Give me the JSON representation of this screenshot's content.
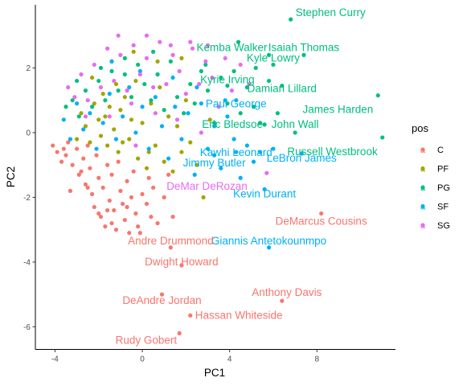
{
  "chart_data": {
    "type": "scatter",
    "xlabel": "PC1",
    "ylabel": "PC2",
    "xlim": [
      -4.9,
      11.6
    ],
    "ylim": [
      -6.7,
      3.95
    ],
    "xticks": [
      -4,
      0,
      4,
      8
    ],
    "yticks": [
      -6,
      -4,
      -2,
      0,
      2
    ],
    "grid": false,
    "legend": {
      "title": "pos",
      "placement": "right",
      "entries": [
        "C",
        "PF",
        "PG",
        "SF",
        "SG"
      ],
      "key_glyph": "a"
    },
    "colors": {
      "C": "#F8766D",
      "PF": "#A3A500",
      "PG": "#00BF7D",
      "SF": "#00B0F6",
      "SG": "#E76BF3"
    },
    "labeled_players": [
      {
        "name": "Stephen Curry",
        "pos": "PG",
        "x": 6.8,
        "y": 3.5
      },
      {
        "name": "Kemba Walker",
        "pos": "PG",
        "x": 5.8,
        "y": 2.4
      },
      {
        "name": "Isaiah Thomas",
        "pos": "PG",
        "x": 7.4,
        "y": 2.4
      },
      {
        "name": "Kyle Lowry",
        "pos": "PG",
        "x": 6.0,
        "y": 2.1
      },
      {
        "name": "Kyrie Irving",
        "pos": "PG",
        "x": 3.9,
        "y": 1.45
      },
      {
        "name": "Damian Lillard",
        "pos": "PG",
        "x": 6.4,
        "y": 1.45
      },
      {
        "name": "Paul George",
        "pos": "SF",
        "x": 4.3,
        "y": 1.0
      },
      {
        "name": "James Harden",
        "pos": "PG",
        "x": 10.8,
        "y": 1.15
      },
      {
        "name": "Eric Bledsoe",
        "pos": "PG",
        "x": 5.6,
        "y": 0.25
      },
      {
        "name": "John Wall",
        "pos": "PG",
        "x": 7.0,
        "y": 0.0
      },
      {
        "name": "Kawhi Leonard",
        "pos": "SF",
        "x": 4.3,
        "y": -0.6
      },
      {
        "name": "Russell Westbrook",
        "pos": "PG",
        "x": 11.0,
        "y": -0.15
      },
      {
        "name": "Jimmy Butler",
        "pos": "SF",
        "x": 3.3,
        "y": -0.7
      },
      {
        "name": "LeBron James",
        "pos": "SF",
        "x": 7.3,
        "y": -0.65
      },
      {
        "name": "DeMar DeRozan",
        "pos": "SG",
        "x": 5.7,
        "y": -1.25
      },
      {
        "name": "Kevin Durant",
        "pos": "SF",
        "x": 5.6,
        "y": -1.75
      },
      {
        "name": "DeMarcus Cousins",
        "pos": "C",
        "x": 8.2,
        "y": -2.5
      },
      {
        "name": "Giannis Antetokounmpo",
        "pos": "SF",
        "x": 5.8,
        "y": -3.55
      },
      {
        "name": "Andre Drummond",
        "pos": "C",
        "x": 1.3,
        "y": -3.55
      },
      {
        "name": "Dwight Howard",
        "pos": "C",
        "x": 1.8,
        "y": -4.1
      },
      {
        "name": "Anthony Davis",
        "pos": "C",
        "x": 6.4,
        "y": -5.2
      },
      {
        "name": "DeAndre Jordan",
        "pos": "C",
        "x": 0.9,
        "y": -5.0
      },
      {
        "name": "Hassan Whiteside",
        "pos": "C",
        "x": 2.2,
        "y": -5.65
      },
      {
        "name": "Rudy Gobert",
        "pos": "C",
        "x": 1.7,
        "y": -6.2
      }
    ],
    "other_players": {
      "C": [
        [
          -4.1,
          -0.4
        ],
        [
          -3.9,
          -0.6
        ],
        [
          -3.7,
          -0.9
        ],
        [
          -3.5,
          -0.7
        ],
        [
          -3.4,
          -0.3
        ],
        [
          -3.2,
          -1.0
        ],
        [
          -3.0,
          -0.5
        ],
        [
          -2.9,
          -1.3
        ],
        [
          -2.7,
          -0.8
        ],
        [
          -2.6,
          -1.6
        ],
        [
          -2.5,
          -0.4
        ],
        [
          -2.4,
          -1.1
        ],
        [
          -2.3,
          -1.9
        ],
        [
          -2.2,
          -2.3
        ],
        [
          -2.1,
          -0.7
        ],
        [
          -2.0,
          -1.4
        ],
        [
          -1.9,
          -2.6
        ],
        [
          -1.8,
          -1.7
        ],
        [
          -1.7,
          -2.9
        ],
        [
          -1.6,
          -1.0
        ],
        [
          -1.5,
          -2.1
        ],
        [
          -1.4,
          -1.3
        ],
        [
          -1.3,
          -2.4
        ],
        [
          -1.2,
          -3.0
        ],
        [
          -1.1,
          -0.9
        ],
        [
          -1.0,
          -1.8
        ],
        [
          -0.9,
          -2.2
        ],
        [
          -0.8,
          -2.7
        ],
        [
          -0.7,
          -1.5
        ],
        [
          -0.6,
          -3.1
        ],
        [
          -0.5,
          -2.0
        ],
        [
          -0.4,
          -1.2
        ],
        [
          -0.3,
          -2.5
        ],
        [
          -0.2,
          -2.9
        ],
        [
          0.0,
          -1.9
        ],
        [
          0.2,
          -2.2
        ],
        [
          0.4,
          -2.6
        ],
        [
          0.5,
          -1.7
        ],
        [
          0.7,
          -2.8
        ],
        [
          1.0,
          -2.0
        ],
        [
          1.4,
          -2.6
        ],
        [
          -3.3,
          -1.8
        ],
        [
          -2.8,
          -1.2
        ],
        [
          -1.4,
          -2.8
        ],
        [
          0.3,
          -1.4
        ],
        [
          -2.0,
          -2.5
        ],
        [
          -0.1,
          -3.1
        ],
        [
          -3.6,
          -0.5
        ],
        [
          -1.6,
          -2.4
        ],
        [
          -2.5,
          -1.7
        ],
        [
          1.2,
          -1.3
        ],
        [
          -0.7,
          -2.3
        ]
      ],
      "PF": [
        [
          -3.0,
          -0.2
        ],
        [
          -2.8,
          0.6
        ],
        [
          -2.6,
          0.2
        ],
        [
          -2.4,
          -0.3
        ],
        [
          -2.2,
          0.9
        ],
        [
          -2.0,
          0.4
        ],
        [
          -1.9,
          -0.1
        ],
        [
          -1.8,
          1.2
        ],
        [
          -1.7,
          0.5
        ],
        [
          -1.6,
          -0.4
        ],
        [
          -1.5,
          0.8
        ],
        [
          -1.3,
          0.1
        ],
        [
          -1.2,
          1.5
        ],
        [
          -1.1,
          -0.6
        ],
        [
          -1.0,
          0.7
        ],
        [
          -0.8,
          1.1
        ],
        [
          -0.6,
          -0.2
        ],
        [
          -0.5,
          0.4
        ],
        [
          -0.3,
          1.6
        ],
        [
          -0.2,
          -0.8
        ],
        [
          0.0,
          0.3
        ],
        [
          0.2,
          -1.1
        ],
        [
          0.4,
          0.9
        ],
        [
          0.6,
          -0.4
        ],
        [
          0.8,
          1.4
        ],
        [
          1.0,
          -0.9
        ],
        [
          1.2,
          0.5
        ],
        [
          1.4,
          -1.2
        ],
        [
          1.6,
          0.2
        ],
        [
          1.8,
          -0.6
        ],
        [
          2.0,
          1.0
        ],
        [
          2.2,
          -0.3
        ],
        [
          2.5,
          -1.0
        ],
        [
          2.8,
          -2.0
        ],
        [
          3.1,
          0.4
        ],
        [
          -2.3,
          1.7
        ],
        [
          -1.4,
          2.2
        ],
        [
          -0.4,
          2.5
        ],
        [
          0.7,
          2.2
        ],
        [
          1.8,
          2.3
        ],
        [
          0.3,
          -0.6
        ],
        [
          -0.9,
          -0.3
        ]
      ],
      "PG": [
        [
          -3.5,
          0.8
        ],
        [
          -3.2,
          1.0
        ],
        [
          -2.9,
          0.5
        ],
        [
          -2.6,
          1.3
        ],
        [
          -2.3,
          0.8
        ],
        [
          -2.0,
          1.6
        ],
        [
          -1.7,
          1.0
        ],
        [
          -1.4,
          1.9
        ],
        [
          -1.1,
          1.3
        ],
        [
          -0.8,
          1.8
        ],
        [
          -0.5,
          1.1
        ],
        [
          -0.2,
          2.1
        ],
        [
          0.1,
          1.5
        ],
        [
          0.4,
          1.0
        ],
        [
          0.7,
          1.8
        ],
        [
          1.0,
          0.7
        ],
        [
          1.3,
          2.2
        ],
        [
          1.6,
          1.1
        ],
        [
          1.9,
          0.6
        ],
        [
          2.2,
          1.5
        ],
        [
          2.4,
          0.9
        ],
        [
          2.7,
          1.9
        ],
        [
          3.0,
          1.3
        ],
        [
          3.3,
          0.3
        ],
        [
          3.6,
          1.7
        ],
        [
          3.9,
          0.9
        ],
        [
          4.2,
          1.9
        ],
        [
          4.5,
          0.6
        ],
        [
          4.8,
          1.4
        ],
        [
          5.1,
          0.8
        ],
        [
          5.4,
          0.3
        ],
        [
          5.8,
          1.6
        ],
        [
          6.2,
          0.6
        ],
        [
          -3.0,
          1.6
        ],
        [
          -1.9,
          2.0
        ],
        [
          -0.8,
          2.3
        ],
        [
          0.5,
          2.5
        ],
        [
          2.9,
          2.1
        ],
        [
          4.4,
          2.8
        ],
        [
          5.2,
          2.0
        ]
      ],
      "SF": [
        [
          -3.6,
          0.4
        ],
        [
          -3.3,
          -0.2
        ],
        [
          -3.0,
          0.9
        ],
        [
          -2.7,
          0.1
        ],
        [
          -2.4,
          0.6
        ],
        [
          -2.1,
          -0.5
        ],
        [
          -1.8,
          0.3
        ],
        [
          -1.5,
          1.2
        ],
        [
          -1.2,
          -0.2
        ],
        [
          -0.9,
          0.5
        ],
        [
          -0.6,
          1.4
        ],
        [
          -0.3,
          0.0
        ],
        [
          0.0,
          0.8
        ],
        [
          0.3,
          -0.5
        ],
        [
          0.6,
          1.1
        ],
        [
          0.9,
          0.2
        ],
        [
          1.2,
          -0.8
        ],
        [
          1.5,
          0.8
        ],
        [
          1.8,
          -0.2
        ],
        [
          2.1,
          0.6
        ],
        [
          2.4,
          -1.3
        ],
        [
          2.7,
          0.9
        ],
        [
          3.0,
          -0.5
        ],
        [
          3.3,
          0.2
        ],
        [
          3.6,
          -1.1
        ],
        [
          3.9,
          0.5
        ],
        [
          4.2,
          -0.2
        ],
        [
          4.5,
          -1.4
        ],
        [
          4.8,
          -0.4
        ],
        [
          5.1,
          -0.9
        ],
        [
          5.4,
          -0.6
        ],
        [
          6.0,
          -0.5
        ],
        [
          -1.4,
          2.2
        ],
        [
          -0.1,
          1.9
        ],
        [
          1.4,
          1.7
        ],
        [
          2.5,
          1.4
        ],
        [
          3.8,
          1.0
        ]
      ],
      "SG": [
        [
          -3.4,
          1.4
        ],
        [
          -3.1,
          1.1
        ],
        [
          -2.8,
          1.8
        ],
        [
          -2.5,
          1.0
        ],
        [
          -2.2,
          2.1
        ],
        [
          -1.9,
          1.4
        ],
        [
          -1.6,
          2.6
        ],
        [
          -1.3,
          1.6
        ],
        [
          -1.0,
          2.4
        ],
        [
          -0.7,
          1.3
        ],
        [
          -0.4,
          2.7
        ],
        [
          -0.1,
          1.8
        ],
        [
          0.2,
          2.3
        ],
        [
          0.5,
          1.4
        ],
        [
          0.8,
          2.8
        ],
        [
          1.1,
          1.5
        ],
        [
          1.4,
          2.4
        ],
        [
          1.7,
          1.9
        ],
        [
          2.0,
          1.2
        ],
        [
          2.3,
          2.6
        ],
        [
          2.6,
          1.5
        ],
        [
          2.9,
          2.2
        ],
        [
          3.2,
          1.7
        ],
        [
          3.5,
          0.8
        ],
        [
          3.8,
          2.3
        ],
        [
          4.1,
          1.3
        ],
        [
          4.5,
          2.1
        ],
        [
          4.9,
          1.5
        ],
        [
          -1.5,
          0.5
        ],
        [
          -0.5,
          0.9
        ],
        [
          0.6,
          0.6
        ],
        [
          1.6,
          0.4
        ],
        [
          2.7,
          0.0
        ],
        [
          -2.6,
          0.5
        ],
        [
          -0.3,
          -0.4
        ],
        [
          3.0,
          2.7
        ],
        [
          -1.1,
          3.0
        ],
        [
          0.2,
          3.0
        ],
        [
          1.3,
          2.7
        ],
        [
          2.2,
          2.8
        ]
      ]
    }
  }
}
